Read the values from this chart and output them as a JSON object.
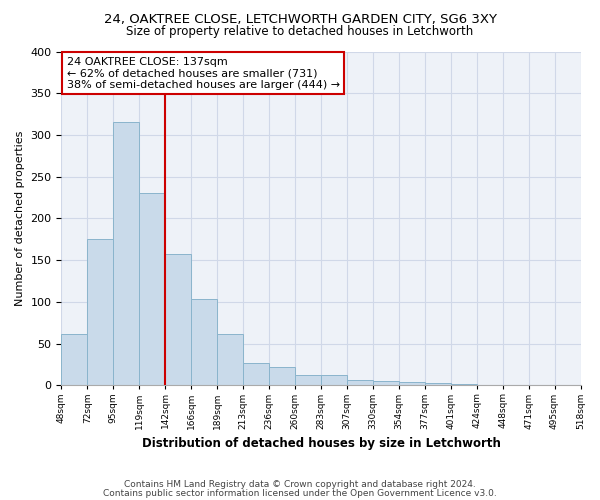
{
  "title1": "24, OAKTREE CLOSE, LETCHWORTH GARDEN CITY, SG6 3XY",
  "title2": "Size of property relative to detached houses in Letchworth",
  "xlabel": "Distribution of detached houses by size in Letchworth",
  "ylabel": "Number of detached properties",
  "bar_color": "#c9daea",
  "bar_edge_color": "#8ab4cc",
  "bar_heights": [
    62,
    175,
    315,
    230,
    157,
    103,
    61,
    27,
    22,
    12,
    12,
    7,
    5,
    4,
    3,
    2,
    1,
    1,
    1,
    1
  ],
  "categories": [
    "48sqm",
    "72sqm",
    "95sqm",
    "119sqm",
    "142sqm",
    "166sqm",
    "189sqm",
    "213sqm",
    "236sqm",
    "260sqm",
    "283sqm",
    "307sqm",
    "330sqm",
    "354sqm",
    "377sqm",
    "401sqm",
    "424sqm",
    "448sqm",
    "471sqm",
    "495sqm",
    "518sqm"
  ],
  "vline_color": "#cc0000",
  "annotation_text": "24 OAKTREE CLOSE: 137sqm\n← 62% of detached houses are smaller (731)\n38% of semi-detached houses are larger (444) →",
  "annotation_box_color": "#ffffff",
  "annotation_box_edge": "#cc0000",
  "footer1": "Contains HM Land Registry data © Crown copyright and database right 2024.",
  "footer2": "Contains public sector information licensed under the Open Government Licence v3.0.",
  "ylim": [
    0,
    400
  ],
  "yticks": [
    0,
    50,
    100,
    150,
    200,
    250,
    300,
    350,
    400
  ],
  "grid_color": "#d0d8e8",
  "bg_color": "#ffffff",
  "plot_bg_color": "#eef2f8"
}
